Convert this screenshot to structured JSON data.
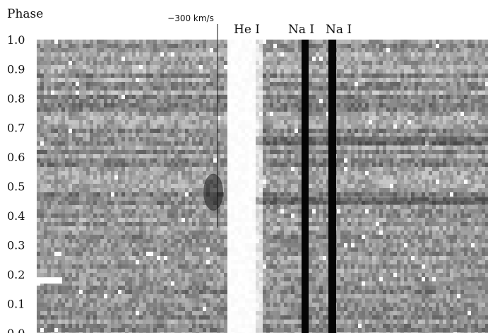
{
  "chart_data": {
    "type": "heatmap",
    "ylabel": "Phase",
    "ylim": [
      0.0,
      1.0
    ],
    "y_ticks": [
      "0.0",
      "0.1",
      "0.2",
      "0.3",
      "0.4",
      "0.5",
      "0.6",
      "0.7",
      "0.8",
      "0.9",
      "1.0"
    ],
    "colormap": "grayscale",
    "annotations": [
      {
        "text": "−300 km/s"
      },
      {
        "text": "He I"
      },
      {
        "text": "Na I"
      },
      {
        "text": "Na I"
      }
    ]
  }
}
